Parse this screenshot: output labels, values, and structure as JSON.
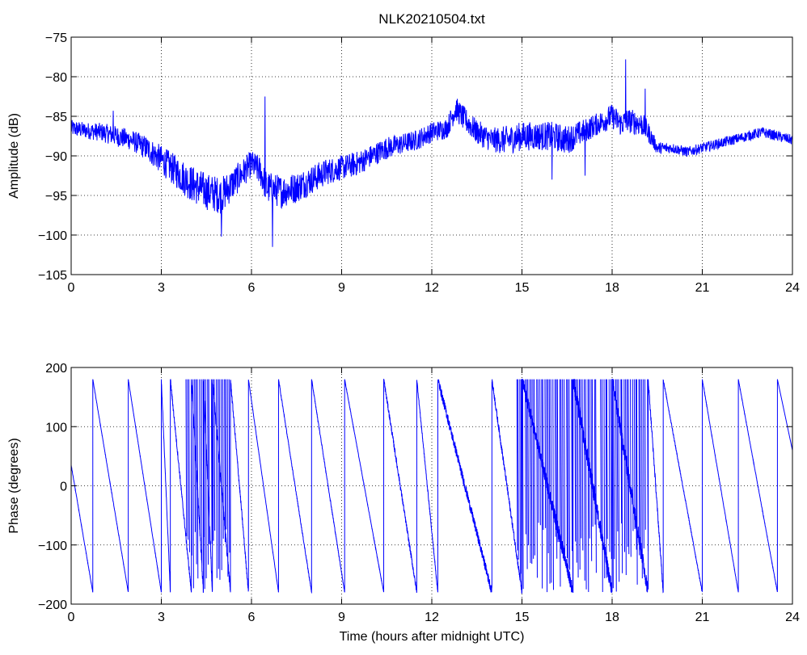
{
  "title": "NLK20210504.txt",
  "colors": {
    "trace": "#0000ff",
    "axes": "#000000",
    "grid": "#000000",
    "background": "#ffffff"
  },
  "chart_data": [
    {
      "type": "line",
      "title": "NLK20210504.txt",
      "xlabel": "",
      "ylabel": "Amplitude (dB)",
      "xlim": [
        0,
        24
      ],
      "ylim": [
        -105,
        -75
      ],
      "xticks": [
        0,
        3,
        6,
        9,
        12,
        15,
        18,
        21,
        24
      ],
      "yticks": [
        -75,
        -80,
        -85,
        -90,
        -95,
        -100,
        -105
      ],
      "xtick_labels": [
        "0",
        "3",
        "6",
        "9",
        "12",
        "15",
        "18",
        "21",
        "24"
      ],
      "ytick_labels": [
        "−75",
        "−80",
        "−85",
        "−90",
        "−95",
        "−100",
        "−105"
      ],
      "grid": "dotted",
      "series": [
        {
          "color": "#0000ff",
          "x": [
            0,
            0.5,
            1,
            1.5,
            2,
            2.5,
            3,
            3.5,
            4,
            4.5,
            5,
            5.5,
            6,
            6.3,
            6.4,
            6.5,
            7,
            7.5,
            8,
            8.5,
            9,
            9.5,
            10,
            10.5,
            11,
            11.5,
            12,
            12.5,
            12.8,
            13,
            13.5,
            14,
            14.5,
            15,
            15.5,
            16,
            16.5,
            17,
            17.5,
            18,
            18.3,
            18.5,
            19,
            19.2,
            19.5,
            20,
            20.5,
            21,
            21.5,
            22,
            22.5,
            23,
            23.5,
            24
          ],
          "y": [
            -86.5,
            -86.8,
            -87,
            -87.5,
            -88,
            -89,
            -90.5,
            -92,
            -93.5,
            -94.5,
            -95,
            -93,
            -91,
            -92,
            -93,
            -94,
            -94.5,
            -94,
            -93,
            -92,
            -91.5,
            -91,
            -90,
            -89,
            -88.5,
            -88,
            -87,
            -86.5,
            -84,
            -85,
            -87,
            -88,
            -88,
            -87.5,
            -87.5,
            -87.5,
            -88,
            -87,
            -86,
            -85,
            -86,
            -85.5,
            -86,
            -87,
            -89,
            -89,
            -89.5,
            -89,
            -88.5,
            -88,
            -87.5,
            -87,
            -87.5,
            -88
          ],
          "noise": [
            0.8,
            0.8,
            0.9,
            1,
            1,
            1.2,
            1.4,
            1.6,
            1.8,
            1.8,
            1.8,
            1.5,
            1.3,
            1.5,
            1.5,
            1.6,
            1.6,
            1.5,
            1.4,
            1.3,
            1.2,
            1.2,
            1.1,
            1.1,
            1,
            1,
            1,
            1,
            1.2,
            1.2,
            1.2,
            1.2,
            1.4,
            1.4,
            1.4,
            1.4,
            1.4,
            1.2,
            1.1,
            1.2,
            1.2,
            1.2,
            1.2,
            1,
            0.6,
            0.5,
            0.5,
            0.5,
            0.5,
            0.5,
            0.5,
            0.5,
            0.5,
            0.5
          ],
          "spikes": [
            {
              "x": 6.45,
              "y": -82.5
            },
            {
              "x": 6.7,
              "y": -101.5
            },
            {
              "x": 5.0,
              "y": -100.2
            },
            {
              "x": 18.45,
              "y": -77.8
            },
            {
              "x": 19.1,
              "y": -81.5
            },
            {
              "x": 12.85,
              "y": -82.8
            },
            {
              "x": 16.0,
              "y": -93.0
            },
            {
              "x": 17.1,
              "y": -92.5
            },
            {
              "x": 1.4,
              "y": -84.3
            }
          ]
        }
      ]
    },
    {
      "type": "line",
      "title": "",
      "xlabel": "Time (hours after midnight UTC)",
      "ylabel": "Phase (degrees)",
      "xlim": [
        0,
        24
      ],
      "ylim": [
        -200,
        200
      ],
      "xticks": [
        0,
        3,
        6,
        9,
        12,
        15,
        18,
        21,
        24
      ],
      "yticks": [
        200,
        100,
        0,
        -100,
        -200
      ],
      "xtick_labels": [
        "0",
        "3",
        "6",
        "9",
        "12",
        "15",
        "18",
        "21",
        "24"
      ],
      "ytick_labels": [
        "200",
        "100",
        "0",
        "−100",
        "−200"
      ],
      "grid": "dotted",
      "series": [
        {
          "color": "#0000ff",
          "wraps": [
            0.0,
            0.72,
            1.9,
            3.0,
            3.3,
            4.0,
            4.4,
            4.7,
            5.3,
            5.9,
            6.9,
            8.0,
            9.1,
            10.4,
            11.5,
            12.2,
            14.0,
            15.0,
            16.7,
            18.0,
            19.2,
            19.7,
            21.0,
            22.2,
            23.5,
            24.0
          ],
          "wrap_noise": [
            1,
            1,
            1,
            3,
            5,
            8,
            8,
            8,
            5,
            1,
            2,
            2,
            1,
            5,
            3,
            8,
            6,
            12,
            14,
            14,
            6,
            2,
            1,
            1,
            1,
            1
          ],
          "dense_burst_ranges": [
            [
              3.8,
              5.3
            ],
            [
              14.8,
              17.5
            ],
            [
              17.6,
              19.2
            ]
          ]
        }
      ]
    }
  ]
}
